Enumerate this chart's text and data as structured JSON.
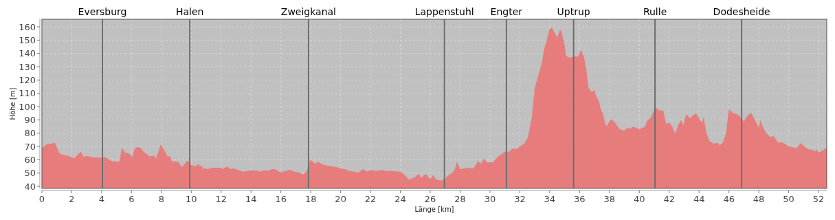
{
  "chart_data": {
    "type": "area",
    "xlabel": "Länge [km]",
    "ylabel": "Höhe [m]",
    "xlim": [
      0,
      52.55
    ],
    "ylim": [
      38.5,
      165.7
    ],
    "xticks": [
      0,
      2,
      4,
      6,
      8,
      10,
      12,
      14,
      16,
      18,
      20,
      22,
      24,
      26,
      28,
      30,
      32,
      34,
      36,
      38,
      40,
      42,
      44,
      46,
      48,
      50,
      52
    ],
    "yticks": [
      40,
      50,
      60,
      70,
      80,
      90,
      100,
      110,
      120,
      130,
      140,
      150,
      160
    ],
    "grid": true,
    "ref_lines": [
      {
        "axis": "x",
        "value": 4.05,
        "label": "Eversburg",
        "color": "#6e6e6e"
      },
      {
        "axis": "x",
        "value": 9.9,
        "label": "Halen",
        "color": "#6e6e6e"
      },
      {
        "axis": "x",
        "value": 17.85,
        "label": "Zweigkanal",
        "color": "#6e6e6e"
      },
      {
        "axis": "x",
        "value": 26.95,
        "label": "Lappenstuhl",
        "color": "#6e6e6e"
      },
      {
        "axis": "x",
        "value": 31.1,
        "label": "Engter",
        "color": "#6e6e6e"
      },
      {
        "axis": "x",
        "value": 35.6,
        "label": "Uptrup",
        "color": "#6e6e6e"
      },
      {
        "axis": "x",
        "value": 41.05,
        "label": "Rulle",
        "color": "#6e6e6e"
      },
      {
        "axis": "x",
        "value": 46.85,
        "label": "Dodesheide",
        "color": "#6e6e6e"
      }
    ],
    "series": [
      {
        "color": "#e87878",
        "x": [
          0,
          0.15,
          0.35,
          0.6,
          0.85,
          1.2,
          2.0,
          2.15,
          2.6,
          2.8,
          3.0,
          3.5,
          3.6,
          3.8,
          4.2,
          4.6,
          4.8,
          4.9,
          5.0,
          5.2,
          5.35,
          5.6,
          5.75,
          6.0,
          6.05,
          6.2,
          6.35,
          6.6,
          6.8,
          7.0,
          7.2,
          7.5,
          7.65,
          7.95,
          8.2,
          8.4,
          8.6,
          8.7,
          8.9,
          9.0,
          9.1,
          9.2,
          9.4,
          9.55,
          9.75,
          10.0,
          10.3,
          10.45,
          10.6,
          10.7,
          10.8,
          10.9,
          11.0,
          11.3,
          11.4,
          12.0,
          12.1,
          12.4,
          12.6,
          12.8,
          13.0,
          13.3,
          13.5,
          13.7,
          14.0,
          14.4,
          14.6,
          14.8,
          15.2,
          15.4,
          15.6,
          15.8,
          16.0,
          16.3,
          16.6,
          16.9,
          17.2,
          17.5,
          17.7,
          17.9,
          18.0,
          18.3,
          18.5,
          18.8,
          19.1,
          19.4,
          19.7,
          20.0,
          20.3,
          20.6,
          20.9,
          21.2,
          21.5,
          21.8,
          22.0,
          22.4,
          22.8,
          23.0,
          23.4,
          24.0,
          24.2,
          24.6,
          25.0,
          25.2,
          25.4,
          25.7,
          26.0,
          26.2,
          26.4,
          26.8,
          27.0,
          27.3,
          27.6,
          27.8,
          28.0,
          28.3,
          28.6,
          28.9,
          29.2,
          29.4,
          29.6,
          29.8,
          30.2,
          30.5,
          30.8,
          31.0,
          31.3,
          31.5,
          31.8,
          32.0,
          32.3,
          32.5,
          32.6,
          32.8,
          33.0,
          33.2,
          33.5,
          33.6,
          33.8,
          34.0,
          34.15,
          34.3,
          34.5,
          34.7,
          34.8,
          35.0,
          35.1,
          35.3,
          35.45,
          35.6,
          35.9,
          36.1,
          36.3,
          36.45,
          36.6,
          36.8,
          37.0,
          37.1,
          37.3,
          37.4,
          37.6,
          37.7,
          37.8,
          38.0,
          38.1,
          38.3,
          38.5,
          38.7,
          38.9,
          39.0,
          39.2,
          39.4,
          39.6,
          39.8,
          40.0,
          40.2,
          40.4,
          40.5,
          40.8,
          41.0,
          41.1,
          41.3,
          41.6,
          41.8,
          42.0,
          42.2,
          42.4,
          42.6,
          42.8,
          42.95,
          43.1,
          43.2,
          43.4,
          43.5,
          43.8,
          44.0,
          44.2,
          44.3,
          44.5,
          44.7,
          45.0,
          45.2,
          45.4,
          45.6,
          45.8,
          45.9,
          46.0,
          46.3,
          46.5,
          46.7,
          47.0,
          47.3,
          47.5,
          47.7,
          48.0,
          48.1,
          48.3,
          48.5,
          48.8,
          49.0,
          49.1,
          49.3,
          49.6,
          50.0,
          50.3,
          50.5,
          50.8,
          51.0,
          51.3,
          51.6,
          51.8,
          51.9,
          52.0,
          52.3,
          52.55
        ],
        "values": [
          69,
          70,
          72,
          72,
          73,
          64.5,
          62,
          61,
          66,
          62,
          63,
          61.5,
          62,
          61.5,
          62,
          59.5,
          58.5,
          59,
          58.5,
          59,
          69,
          65,
          65.5,
          63,
          61.5,
          68,
          69.5,
          69,
          66,
          64.5,
          62.5,
          63,
          61,
          71.5,
          67,
          62.5,
          62.5,
          58.5,
          59,
          58,
          59,
          57,
          54.5,
          57,
          59.5,
          56,
          55,
          57,
          55,
          56,
          52.5,
          54,
          53,
          53.5,
          54,
          54,
          53,
          55,
          53,
          53.5,
          53,
          51.5,
          51,
          51.5,
          52,
          52,
          51,
          52,
          52,
          53,
          53,
          51.5,
          50.5,
          51.5,
          52.5,
          51,
          50.5,
          49,
          51,
          58,
          60,
          57,
          58.5,
          56.5,
          55.5,
          55,
          54.5,
          53.5,
          53,
          51.5,
          51,
          50.5,
          53,
          51,
          52.5,
          51.5,
          52.5,
          51.5,
          51.5,
          51,
          49.5,
          45,
          47,
          49.5,
          46.5,
          49.5,
          45.5,
          48.5,
          45,
          44.5,
          46,
          49,
          51.5,
          58.5,
          53,
          53.5,
          54,
          53.5,
          59,
          57,
          61,
          58,
          58,
          62,
          64.5,
          66,
          66,
          68.5,
          68,
          70,
          72,
          76,
          80,
          92,
          114,
          122,
          134,
          142,
          150,
          158.5,
          159.5,
          156,
          152,
          158,
          156,
          146,
          138,
          137,
          137,
          138,
          137.5,
          143,
          137,
          128,
          114,
          111,
          112.5,
          108,
          104,
          99,
          93,
          88,
          85,
          89,
          90.5,
          89,
          86,
          83,
          82,
          82,
          84,
          83.5,
          85,
          84,
          83,
          84,
          85,
          89,
          92,
          98,
          99.5,
          97,
          97,
          87,
          88,
          85,
          79.5,
          86,
          90,
          86,
          93,
          94,
          91,
          92.5,
          95,
          91,
          88,
          92,
          80,
          74,
          72,
          73,
          71,
          73,
          80,
          89,
          98,
          95,
          94.5,
          93,
          89,
          94,
          95,
          91,
          84,
          90,
          84,
          80,
          77,
          78,
          76,
          73,
          73,
          70,
          69.5,
          68.5,
          72.5,
          70.5,
          68,
          67.5,
          66.5,
          67.5,
          65.5,
          67,
          69.5
        ]
      }
    ]
  }
}
